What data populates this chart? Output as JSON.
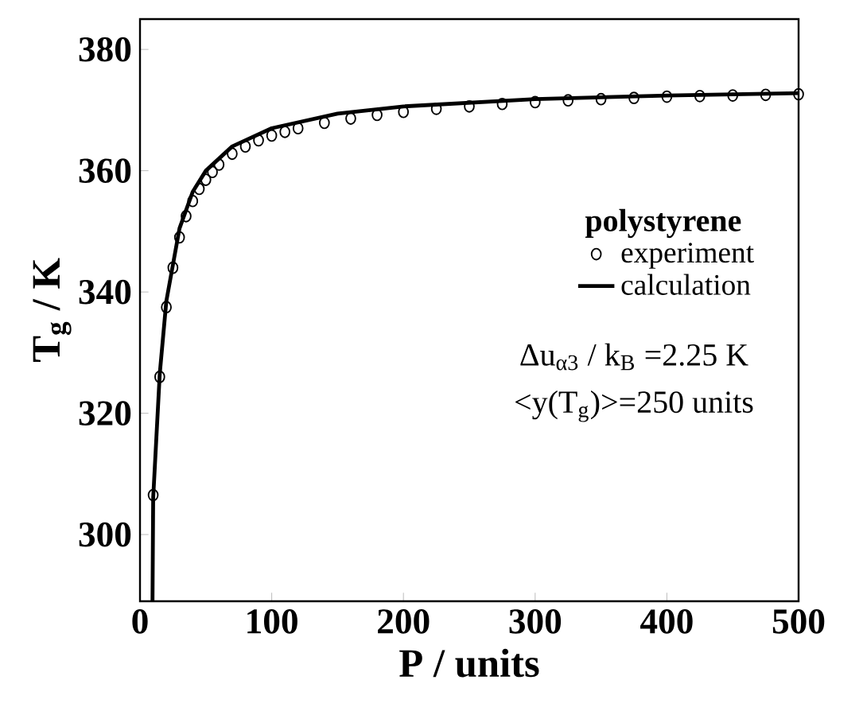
{
  "chart_data": {
    "type": "scatter",
    "xlabel": "P / units",
    "ylabel": "T$_{g}$ / K",
    "legend_title": "polystyrene",
    "xlim": [
      0,
      500
    ],
    "ylim": [
      289,
      385
    ],
    "xticks": [
      0,
      100,
      200,
      300,
      400,
      500
    ],
    "yticks": [
      300,
      320,
      340,
      360,
      380
    ],
    "legend": "right",
    "grid": false,
    "series": [
      {
        "name": "experiment",
        "marker": "circle",
        "color": "#000000",
        "x": [
          10,
          15,
          20,
          25,
          30,
          35,
          40,
          45,
          50,
          55,
          60,
          70,
          80,
          90,
          100,
          110,
          120,
          140,
          160,
          180,
          200,
          225,
          250,
          275,
          300,
          325,
          350,
          375,
          400,
          425,
          450,
          475,
          500
        ],
        "values": [
          306.5,
          326,
          337.5,
          344,
          349,
          352.5,
          355,
          357,
          358.5,
          359.8,
          361,
          362.8,
          364,
          365,
          365.8,
          366.4,
          367,
          367.9,
          368.6,
          369.2,
          369.7,
          370.2,
          370.6,
          371,
          371.3,
          371.6,
          371.8,
          372,
          372.2,
          372.3,
          372.4,
          372.5,
          372.6
        ]
      },
      {
        "name": "calculation",
        "type": "line",
        "marker": "none",
        "line_style": "solid",
        "color": "#000000",
        "x": [
          9.5,
          10,
          15,
          20,
          30,
          40,
          50,
          70,
          100,
          150,
          200,
          300,
          400,
          500
        ],
        "values": [
          289,
          306,
          326.5,
          338.5,
          350.5,
          356.5,
          360,
          364,
          367,
          369.4,
          370.6,
          371.8,
          372.4,
          372.8
        ]
      }
    ],
    "annotations": [
      "Δu$_{α3}$ / k$_{B}$ =2.25 K",
      "<y(T$_{g}$)>=250 units"
    ]
  }
}
